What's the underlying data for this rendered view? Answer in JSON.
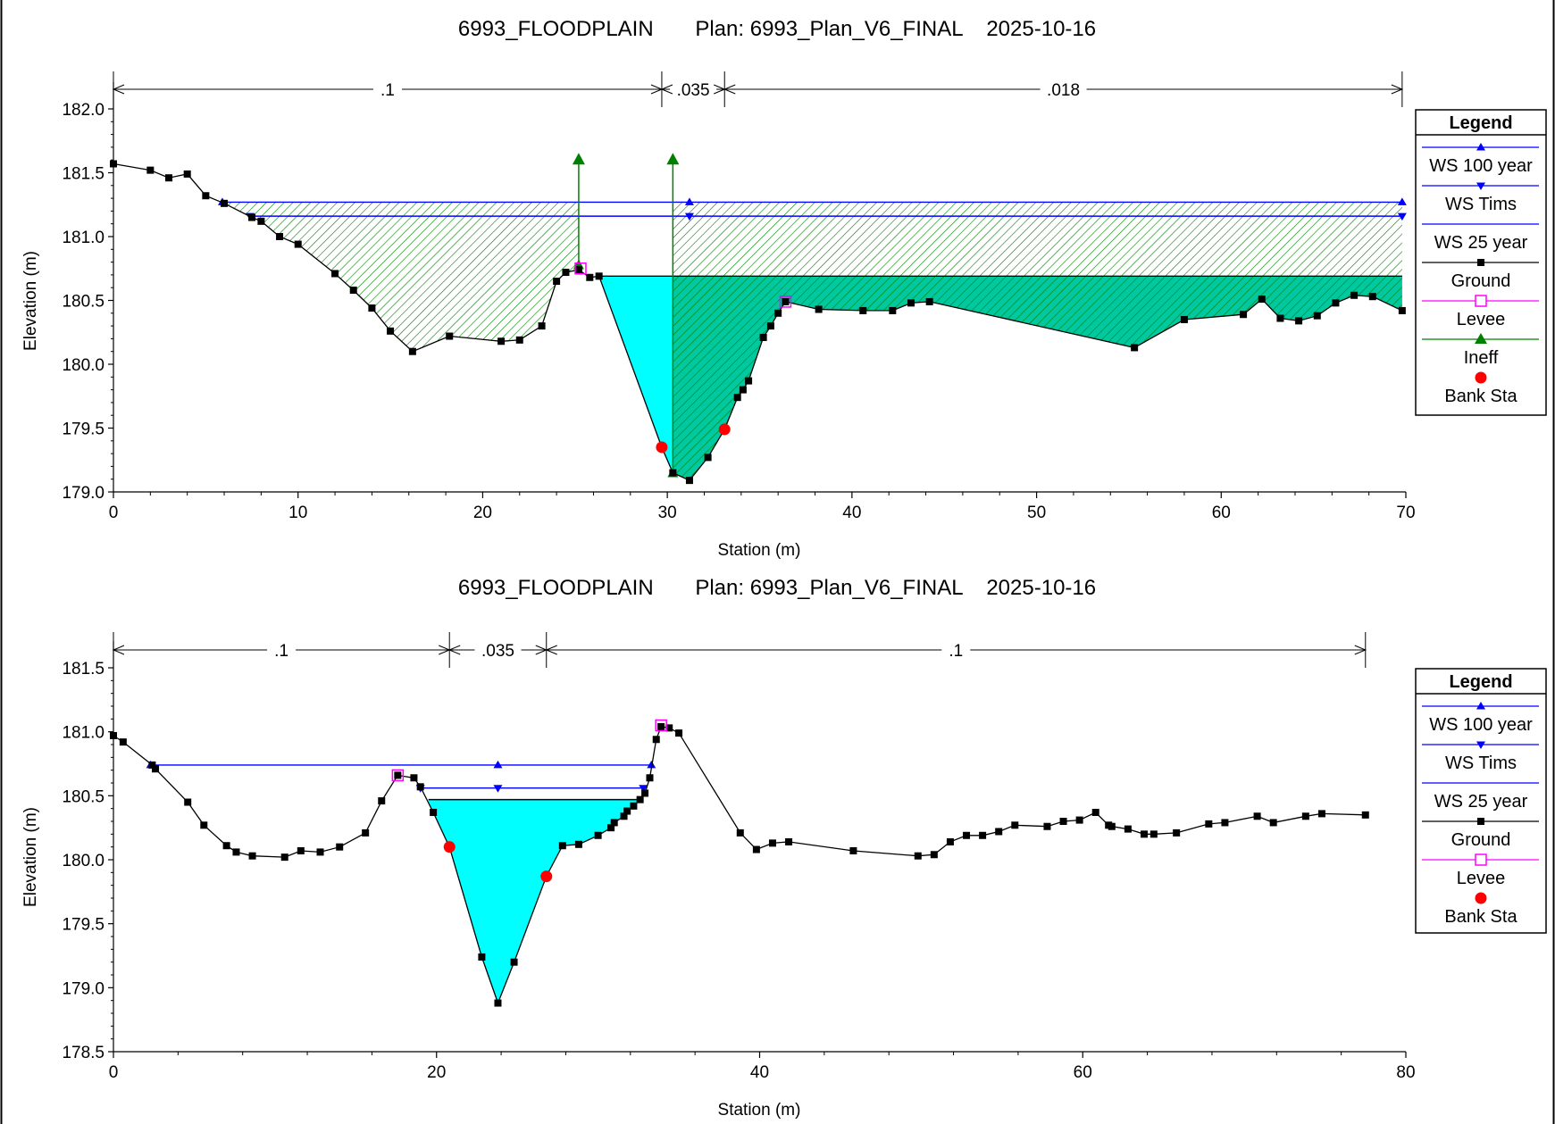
{
  "chart_data": [
    {
      "type": "line",
      "title": "6993_FLOODPLAIN       Plan: 6993_Plan_V6_FINAL    2025-10-16",
      "xlabel": "Station (m)",
      "ylabel": "Elevation (m)",
      "xlim": [
        0,
        70
      ],
      "ylim": [
        179.0,
        182.0
      ],
      "xticks": [
        "0",
        "10",
        "20",
        "30",
        "40",
        "50",
        "60",
        "70"
      ],
      "yticks": [
        "179.0",
        "179.5",
        "180.0",
        "180.5",
        "181.0",
        "181.5",
        "182.0"
      ],
      "mannings": [
        {
          "from": 0,
          "to": 29.7,
          "label": ".1"
        },
        {
          "from": 29.7,
          "to": 33.1,
          "label": ".035"
        },
        {
          "from": 33.1,
          "to": 69.8,
          "label": ".018"
        }
      ],
      "legend": {
        "title": "Legend",
        "entries": [
          "WS 100 year",
          "WS Tims",
          "WS 25 year",
          "Ground",
          "Levee",
          "Ineff",
          "Bank Sta"
        ]
      },
      "ground": [
        [
          0,
          181.57
        ],
        [
          2,
          181.52
        ],
        [
          3,
          181.46
        ],
        [
          4,
          181.49
        ],
        [
          5,
          181.32
        ],
        [
          6,
          181.26
        ],
        [
          7.5,
          181.15
        ],
        [
          8,
          181.12
        ],
        [
          9,
          181.0
        ],
        [
          10,
          180.94
        ],
        [
          12,
          180.71
        ],
        [
          13,
          180.58
        ],
        [
          14,
          180.44
        ],
        [
          15,
          180.26
        ],
        [
          16.2,
          180.1
        ],
        [
          18.2,
          180.22
        ],
        [
          21,
          180.18
        ],
        [
          22,
          180.19
        ],
        [
          23.2,
          180.3
        ],
        [
          24,
          180.65
        ],
        [
          24.5,
          180.72
        ],
        [
          25.2,
          180.74
        ],
        [
          25.8,
          180.68
        ],
        [
          26.3,
          180.69
        ],
        [
          29.7,
          179.35
        ],
        [
          30.3,
          179.15
        ],
        [
          31.2,
          179.09
        ],
        [
          32.2,
          179.27
        ],
        [
          33.1,
          179.49
        ],
        [
          33.8,
          179.74
        ],
        [
          34.1,
          179.8
        ],
        [
          34.4,
          179.87
        ],
        [
          35.2,
          180.21
        ],
        [
          35.6,
          180.3
        ],
        [
          36.0,
          180.4
        ],
        [
          36.4,
          180.49
        ],
        [
          38.2,
          180.43
        ],
        [
          40.6,
          180.42
        ],
        [
          42.2,
          180.42
        ],
        [
          43.2,
          180.48
        ],
        [
          44.2,
          180.49
        ],
        [
          55.3,
          180.13
        ],
        [
          58.0,
          180.35
        ],
        [
          61.2,
          180.39
        ],
        [
          62.2,
          180.51
        ],
        [
          63.2,
          180.36
        ],
        [
          64.2,
          180.34
        ],
        [
          65.2,
          180.38
        ],
        [
          66.2,
          180.48
        ],
        [
          67.2,
          180.54
        ],
        [
          68.2,
          180.53
        ],
        [
          69.8,
          180.42
        ]
      ],
      "ws_100_year": {
        "elev": 181.27,
        "from": 5.9,
        "to": 69.8
      },
      "ws_tims": {
        "elev": 181.16,
        "from": 7.4,
        "to": 69.8
      },
      "ws_25_year": {
        "elev": 180.69,
        "from": 26.3,
        "to": 69.8
      },
      "levee": [
        [
          25.3,
          180.75
        ],
        [
          36.4,
          180.49
        ]
      ],
      "ineff": [
        {
          "sta": 25.2,
          "from": 180.78,
          "to": 181.6
        },
        {
          "sta": 30.3,
          "from": 179.15,
          "to": 181.6
        }
      ],
      "bank_sta": [
        [
          29.7,
          179.35
        ],
        [
          33.1,
          179.49
        ]
      ]
    },
    {
      "type": "line",
      "title": "6993_FLOODPLAIN       Plan: 6993_Plan_V6_FINAL    2025-10-16",
      "xlabel": "Station (m)",
      "ylabel": "Elevation (m)",
      "xlim": [
        0,
        80
      ],
      "ylim": [
        178.5,
        181.5
      ],
      "xticks": [
        "0",
        "20",
        "40",
        "60",
        "80"
      ],
      "yticks": [
        "178.5",
        "179.0",
        "179.5",
        "180.0",
        "180.5",
        "181.0",
        "181.5"
      ],
      "mannings": [
        {
          "from": 0,
          "to": 20.8,
          "label": ".1"
        },
        {
          "from": 20.8,
          "to": 26.8,
          "label": ".035"
        },
        {
          "from": 26.8,
          "to": 77.5,
          "label": ".1"
        }
      ],
      "legend": {
        "title": "Legend",
        "entries": [
          "WS 100 year",
          "WS Tims",
          "WS 25 year",
          "Ground",
          "Levee",
          "Bank Sta"
        ]
      },
      "ground": [
        [
          0,
          180.97
        ],
        [
          0.6,
          180.92
        ],
        [
          2.4,
          180.74
        ],
        [
          2.6,
          180.71
        ],
        [
          4.6,
          180.45
        ],
        [
          5.6,
          180.27
        ],
        [
          7.0,
          180.11
        ],
        [
          7.6,
          180.06
        ],
        [
          8.6,
          180.03
        ],
        [
          10.6,
          180.02
        ],
        [
          11.6,
          180.07
        ],
        [
          12.8,
          180.06
        ],
        [
          14.0,
          180.1
        ],
        [
          15.6,
          180.21
        ],
        [
          16.6,
          180.46
        ],
        [
          17.6,
          180.66
        ],
        [
          18.6,
          180.64
        ],
        [
          19.0,
          180.57
        ],
        [
          19.8,
          180.37
        ],
        [
          20.8,
          180.1
        ],
        [
          22.8,
          179.24
        ],
        [
          23.8,
          178.88
        ],
        [
          24.8,
          179.2
        ],
        [
          26.8,
          179.87
        ],
        [
          27.8,
          180.11
        ],
        [
          28.8,
          180.12
        ],
        [
          30.0,
          180.19
        ],
        [
          30.8,
          180.25
        ],
        [
          31.0,
          180.29
        ],
        [
          31.6,
          180.34
        ],
        [
          31.8,
          180.38
        ],
        [
          32.2,
          180.42
        ],
        [
          32.6,
          180.47
        ],
        [
          32.9,
          180.52
        ],
        [
          33.2,
          180.64
        ],
        [
          33.6,
          180.94
        ],
        [
          33.9,
          181.04
        ],
        [
          34.4,
          181.03
        ],
        [
          35.0,
          180.99
        ],
        [
          38.8,
          180.21
        ],
        [
          39.8,
          180.08
        ],
        [
          40.8,
          180.13
        ],
        [
          41.8,
          180.14
        ],
        [
          45.8,
          180.07
        ],
        [
          49.8,
          180.03
        ],
        [
          50.8,
          180.04
        ],
        [
          51.8,
          180.14
        ],
        [
          52.8,
          180.19
        ],
        [
          53.8,
          180.19
        ],
        [
          54.8,
          180.22
        ],
        [
          55.8,
          180.27
        ],
        [
          57.8,
          180.26
        ],
        [
          58.8,
          180.3
        ],
        [
          59.8,
          180.31
        ],
        [
          60.8,
          180.37
        ],
        [
          61.6,
          180.27
        ],
        [
          61.8,
          180.26
        ],
        [
          62.8,
          180.24
        ],
        [
          63.8,
          180.2
        ],
        [
          64.4,
          180.2
        ],
        [
          65.8,
          180.21
        ],
        [
          67.8,
          180.28
        ],
        [
          68.8,
          180.29
        ],
        [
          70.8,
          180.34
        ],
        [
          71.8,
          180.29
        ],
        [
          73.8,
          180.34
        ],
        [
          74.8,
          180.36
        ],
        [
          77.5,
          180.35
        ]
      ],
      "ws_100_year": {
        "elev": 180.74,
        "from": 2.3,
        "to": 33.3
      },
      "ws_tims": {
        "elev": 180.56,
        "from": 19.0,
        "to": 32.8
      },
      "ws_25_year": {
        "elev": 180.47,
        "from": 19.5,
        "to": 32.6
      },
      "levee": [
        [
          17.6,
          180.66
        ],
        [
          33.9,
          181.05
        ]
      ],
      "bank_sta": [
        [
          20.8,
          180.1
        ],
        [
          26.8,
          179.87
        ]
      ]
    }
  ],
  "colors": {
    "ws": "#0000ff",
    "ground": "#000000",
    "levee": "#ff00ff",
    "ineff": "#008000",
    "bank": "#ff0000",
    "water_fill": "#00ffff",
    "hatch": "#008000"
  }
}
